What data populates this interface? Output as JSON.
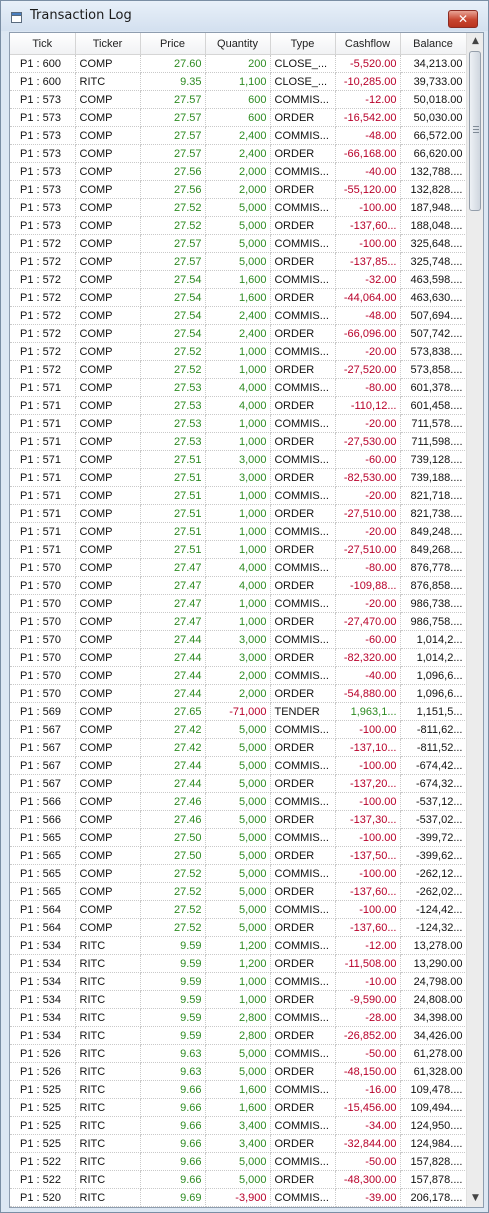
{
  "window": {
    "title": "Transaction Log",
    "close_label": "✕"
  },
  "columns": [
    "Tick",
    "Ticker",
    "Price",
    "Quantity",
    "Type",
    "Cashflow",
    "Balance"
  ],
  "rows": [
    [
      "P1 : 600",
      "COMP",
      "27.60",
      "200",
      "CLOSE_...",
      "-5,520.00",
      "34,213.00"
    ],
    [
      "P1 : 600",
      "RITC",
      "9.35",
      "1,100",
      "CLOSE_...",
      "-10,285.00",
      "39,733.00"
    ],
    [
      "P1 : 573",
      "COMP",
      "27.57",
      "600",
      "COMMIS...",
      "-12.00",
      "50,018.00"
    ],
    [
      "P1 : 573",
      "COMP",
      "27.57",
      "600",
      "ORDER",
      "-16,542.00",
      "50,030.00"
    ],
    [
      "P1 : 573",
      "COMP",
      "27.57",
      "2,400",
      "COMMIS...",
      "-48.00",
      "66,572.00"
    ],
    [
      "P1 : 573",
      "COMP",
      "27.57",
      "2,400",
      "ORDER",
      "-66,168.00",
      "66,620.00"
    ],
    [
      "P1 : 573",
      "COMP",
      "27.56",
      "2,000",
      "COMMIS...",
      "-40.00",
      "132,788...."
    ],
    [
      "P1 : 573",
      "COMP",
      "27.56",
      "2,000",
      "ORDER",
      "-55,120.00",
      "132,828...."
    ],
    [
      "P1 : 573",
      "COMP",
      "27.52",
      "5,000",
      "COMMIS...",
      "-100.00",
      "187,948...."
    ],
    [
      "P1 : 573",
      "COMP",
      "27.52",
      "5,000",
      "ORDER",
      "-137,60...",
      "188,048...."
    ],
    [
      "P1 : 572",
      "COMP",
      "27.57",
      "5,000",
      "COMMIS...",
      "-100.00",
      "325,648...."
    ],
    [
      "P1 : 572",
      "COMP",
      "27.57",
      "5,000",
      "ORDER",
      "-137,85...",
      "325,748...."
    ],
    [
      "P1 : 572",
      "COMP",
      "27.54",
      "1,600",
      "COMMIS...",
      "-32.00",
      "463,598...."
    ],
    [
      "P1 : 572",
      "COMP",
      "27.54",
      "1,600",
      "ORDER",
      "-44,064.00",
      "463,630...."
    ],
    [
      "P1 : 572",
      "COMP",
      "27.54",
      "2,400",
      "COMMIS...",
      "-48.00",
      "507,694...."
    ],
    [
      "P1 : 572",
      "COMP",
      "27.54",
      "2,400",
      "ORDER",
      "-66,096.00",
      "507,742...."
    ],
    [
      "P1 : 572",
      "COMP",
      "27.52",
      "1,000",
      "COMMIS...",
      "-20.00",
      "573,838...."
    ],
    [
      "P1 : 572",
      "COMP",
      "27.52",
      "1,000",
      "ORDER",
      "-27,520.00",
      "573,858...."
    ],
    [
      "P1 : 571",
      "COMP",
      "27.53",
      "4,000",
      "COMMIS...",
      "-80.00",
      "601,378...."
    ],
    [
      "P1 : 571",
      "COMP",
      "27.53",
      "4,000",
      "ORDER",
      "-110,12...",
      "601,458...."
    ],
    [
      "P1 : 571",
      "COMP",
      "27.53",
      "1,000",
      "COMMIS...",
      "-20.00",
      "711,578...."
    ],
    [
      "P1 : 571",
      "COMP",
      "27.53",
      "1,000",
      "ORDER",
      "-27,530.00",
      "711,598...."
    ],
    [
      "P1 : 571",
      "COMP",
      "27.51",
      "3,000",
      "COMMIS...",
      "-60.00",
      "739,128...."
    ],
    [
      "P1 : 571",
      "COMP",
      "27.51",
      "3,000",
      "ORDER",
      "-82,530.00",
      "739,188...."
    ],
    [
      "P1 : 571",
      "COMP",
      "27.51",
      "1,000",
      "COMMIS...",
      "-20.00",
      "821,718...."
    ],
    [
      "P1 : 571",
      "COMP",
      "27.51",
      "1,000",
      "ORDER",
      "-27,510.00",
      "821,738...."
    ],
    [
      "P1 : 571",
      "COMP",
      "27.51",
      "1,000",
      "COMMIS...",
      "-20.00",
      "849,248...."
    ],
    [
      "P1 : 571",
      "COMP",
      "27.51",
      "1,000",
      "ORDER",
      "-27,510.00",
      "849,268...."
    ],
    [
      "P1 : 570",
      "COMP",
      "27.47",
      "4,000",
      "COMMIS...",
      "-80.00",
      "876,778...."
    ],
    [
      "P1 : 570",
      "COMP",
      "27.47",
      "4,000",
      "ORDER",
      "-109,88...",
      "876,858...."
    ],
    [
      "P1 : 570",
      "COMP",
      "27.47",
      "1,000",
      "COMMIS...",
      "-20.00",
      "986,738...."
    ],
    [
      "P1 : 570",
      "COMP",
      "27.47",
      "1,000",
      "ORDER",
      "-27,470.00",
      "986,758...."
    ],
    [
      "P1 : 570",
      "COMP",
      "27.44",
      "3,000",
      "COMMIS...",
      "-60.00",
      "1,014,2..."
    ],
    [
      "P1 : 570",
      "COMP",
      "27.44",
      "3,000",
      "ORDER",
      "-82,320.00",
      "1,014,2..."
    ],
    [
      "P1 : 570",
      "COMP",
      "27.44",
      "2,000",
      "COMMIS...",
      "-40.00",
      "1,096,6..."
    ],
    [
      "P1 : 570",
      "COMP",
      "27.44",
      "2,000",
      "ORDER",
      "-54,880.00",
      "1,096,6..."
    ],
    [
      "P1 : 569",
      "COMP",
      "27.65",
      "-71,000",
      "TENDER",
      "1,963,1...",
      "1,151,5..."
    ],
    [
      "P1 : 567",
      "COMP",
      "27.42",
      "5,000",
      "COMMIS...",
      "-100.00",
      "-811,62..."
    ],
    [
      "P1 : 567",
      "COMP",
      "27.42",
      "5,000",
      "ORDER",
      "-137,10...",
      "-811,52..."
    ],
    [
      "P1 : 567",
      "COMP",
      "27.44",
      "5,000",
      "COMMIS...",
      "-100.00",
      "-674,42..."
    ],
    [
      "P1 : 567",
      "COMP",
      "27.44",
      "5,000",
      "ORDER",
      "-137,20...",
      "-674,32..."
    ],
    [
      "P1 : 566",
      "COMP",
      "27.46",
      "5,000",
      "COMMIS...",
      "-100.00",
      "-537,12..."
    ],
    [
      "P1 : 566",
      "COMP",
      "27.46",
      "5,000",
      "ORDER",
      "-137,30...",
      "-537,02..."
    ],
    [
      "P1 : 565",
      "COMP",
      "27.50",
      "5,000",
      "COMMIS...",
      "-100.00",
      "-399,72..."
    ],
    [
      "P1 : 565",
      "COMP",
      "27.50",
      "5,000",
      "ORDER",
      "-137,50...",
      "-399,62..."
    ],
    [
      "P1 : 565",
      "COMP",
      "27.52",
      "5,000",
      "COMMIS...",
      "-100.00",
      "-262,12..."
    ],
    [
      "P1 : 565",
      "COMP",
      "27.52",
      "5,000",
      "ORDER",
      "-137,60...",
      "-262,02..."
    ],
    [
      "P1 : 564",
      "COMP",
      "27.52",
      "5,000",
      "COMMIS...",
      "-100.00",
      "-124,42..."
    ],
    [
      "P1 : 564",
      "COMP",
      "27.52",
      "5,000",
      "ORDER",
      "-137,60...",
      "-124,32..."
    ],
    [
      "P1 : 534",
      "RITC",
      "9.59",
      "1,200",
      "COMMIS...",
      "-12.00",
      "13,278.00"
    ],
    [
      "P1 : 534",
      "RITC",
      "9.59",
      "1,200",
      "ORDER",
      "-11,508.00",
      "13,290.00"
    ],
    [
      "P1 : 534",
      "RITC",
      "9.59",
      "1,000",
      "COMMIS...",
      "-10.00",
      "24,798.00"
    ],
    [
      "P1 : 534",
      "RITC",
      "9.59",
      "1,000",
      "ORDER",
      "-9,590.00",
      "24,808.00"
    ],
    [
      "P1 : 534",
      "RITC",
      "9.59",
      "2,800",
      "COMMIS...",
      "-28.00",
      "34,398.00"
    ],
    [
      "P1 : 534",
      "RITC",
      "9.59",
      "2,800",
      "ORDER",
      "-26,852.00",
      "34,426.00"
    ],
    [
      "P1 : 526",
      "RITC",
      "9.63",
      "5,000",
      "COMMIS...",
      "-50.00",
      "61,278.00"
    ],
    [
      "P1 : 526",
      "RITC",
      "9.63",
      "5,000",
      "ORDER",
      "-48,150.00",
      "61,328.00"
    ],
    [
      "P1 : 525",
      "RITC",
      "9.66",
      "1,600",
      "COMMIS...",
      "-16.00",
      "109,478...."
    ],
    [
      "P1 : 525",
      "RITC",
      "9.66",
      "1,600",
      "ORDER",
      "-15,456.00",
      "109,494...."
    ],
    [
      "P1 : 525",
      "RITC",
      "9.66",
      "3,400",
      "COMMIS...",
      "-34.00",
      "124,950...."
    ],
    [
      "P1 : 525",
      "RITC",
      "9.66",
      "3,400",
      "ORDER",
      "-32,844.00",
      "124,984...."
    ],
    [
      "P1 : 522",
      "RITC",
      "9.66",
      "5,000",
      "COMMIS...",
      "-50.00",
      "157,828...."
    ],
    [
      "P1 : 522",
      "RITC",
      "9.66",
      "5,000",
      "ORDER",
      "-48,300.00",
      "157,878...."
    ],
    [
      "P1 : 520",
      "RITC",
      "9.69",
      "-3,900",
      "COMMIS...",
      "-39.00",
      "206,178...."
    ]
  ],
  "colors": {
    "positive": "#2e8b22",
    "negative": "#b8002a",
    "close_button": "#c8452f"
  },
  "icons": {
    "title": "window-icon",
    "close": "close-icon",
    "scroll_up": "scroll-up-arrow-icon",
    "scroll_down": "scroll-down-arrow-icon"
  }
}
